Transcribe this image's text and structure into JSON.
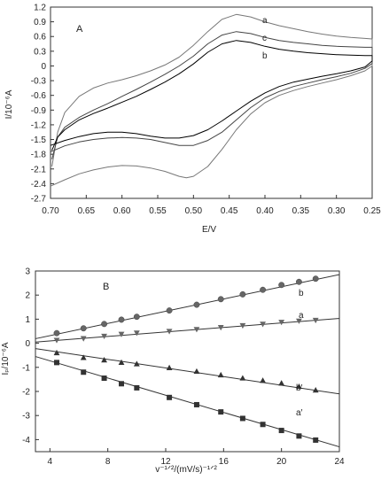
{
  "chart_data": [
    {
      "panel": "A",
      "type": "line",
      "xlabel": "E/V",
      "ylabel": "I/10⁻⁶A",
      "xlim": [
        0.7,
        0.25
      ],
      "ylim": [
        -2.7,
        1.2
      ],
      "x_axis_reversed": true,
      "xticks": [
        0.7,
        0.65,
        0.6,
        0.55,
        0.5,
        0.45,
        0.4,
        0.35,
        0.3,
        0.25
      ],
      "xtick_labels": [
        "0.70",
        "0.65",
        "0.60",
        "0.55",
        "0.50",
        "0.45",
        "0.40",
        "0.35",
        "0.30",
        "0.25"
      ],
      "yticks": [
        1.2,
        0.9,
        0.6,
        0.3,
        0,
        -0.3,
        -0.6,
        -0.9,
        -1.2,
        -1.5,
        -1.8,
        -2.1,
        -2.4,
        -2.7
      ],
      "ytick_labels": [
        "1.2",
        "0.9",
        "0.6",
        "0.3",
        "0",
        "-0.3",
        "-0.6",
        "-0.9",
        "-1.2",
        "-1.5",
        "-1.8",
        "-2.1",
        "-2.4",
        "-2.7"
      ],
      "series": [
        {
          "name": "a",
          "color": "#777777",
          "upper": {
            "x": [
              0.698,
              0.69,
              0.68,
              0.66,
              0.64,
              0.62,
              0.6,
              0.58,
              0.56,
              0.54,
              0.52,
              0.5,
              0.48,
              0.46,
              0.44,
              0.42,
              0.4,
              0.38,
              0.36,
              0.34,
              0.32,
              0.3,
              0.28,
              0.26,
              0.25
            ],
            "y": [
              -2.05,
              -1.35,
              -0.95,
              -0.62,
              -0.45,
              -0.35,
              -0.28,
              -0.2,
              -0.1,
              0.02,
              0.18,
              0.42,
              0.7,
              0.95,
              1.05,
              1.0,
              0.9,
              0.82,
              0.76,
              0.7,
              0.65,
              0.61,
              0.58,
              0.56,
              0.55
            ]
          },
          "lower": {
            "x": [
              0.25,
              0.26,
              0.28,
              0.3,
              0.32,
              0.34,
              0.36,
              0.38,
              0.4,
              0.42,
              0.44,
              0.46,
              0.48,
              0.5,
              0.51,
              0.52,
              0.54,
              0.56,
              0.58,
              0.6,
              0.62,
              0.64,
              0.66,
              0.68,
              0.7
            ],
            "y": [
              0.0,
              -0.1,
              -0.2,
              -0.28,
              -0.35,
              -0.42,
              -0.5,
              -0.6,
              -0.75,
              -0.98,
              -1.3,
              -1.7,
              -2.05,
              -2.25,
              -2.28,
              -2.25,
              -2.15,
              -2.08,
              -2.04,
              -2.03,
              -2.06,
              -2.12,
              -2.2,
              -2.32,
              -2.45
            ]
          }
        },
        {
          "name": "c",
          "color": "#444444",
          "upper": {
            "x": [
              0.698,
              0.69,
              0.68,
              0.66,
              0.64,
              0.62,
              0.6,
              0.58,
              0.56,
              0.54,
              0.52,
              0.5,
              0.48,
              0.46,
              0.44,
              0.42,
              0.4,
              0.38,
              0.36,
              0.34,
              0.32,
              0.3,
              0.28,
              0.26,
              0.25
            ],
            "y": [
              -1.9,
              -1.45,
              -1.25,
              -1.05,
              -0.9,
              -0.77,
              -0.62,
              -0.48,
              -0.33,
              -0.17,
              0.0,
              0.2,
              0.45,
              0.63,
              0.7,
              0.66,
              0.58,
              0.52,
              0.48,
              0.45,
              0.42,
              0.4,
              0.39,
              0.38,
              0.38
            ]
          },
          "lower": {
            "x": [
              0.25,
              0.26,
              0.28,
              0.3,
              0.32,
              0.34,
              0.36,
              0.38,
              0.4,
              0.42,
              0.44,
              0.46,
              0.48,
              0.5,
              0.52,
              0.54,
              0.56,
              0.58,
              0.6,
              0.62,
              0.64,
              0.66,
              0.68,
              0.7
            ],
            "y": [
              0.05,
              -0.05,
              -0.15,
              -0.22,
              -0.28,
              -0.35,
              -0.42,
              -0.52,
              -0.65,
              -0.85,
              -1.1,
              -1.35,
              -1.52,
              -1.62,
              -1.62,
              -1.56,
              -1.5,
              -1.47,
              -1.46,
              -1.47,
              -1.5,
              -1.55,
              -1.63,
              -1.75
            ]
          }
        },
        {
          "name": "b",
          "color": "#000000",
          "upper": {
            "x": [
              0.698,
              0.69,
              0.68,
              0.66,
              0.64,
              0.62,
              0.6,
              0.58,
              0.56,
              0.54,
              0.52,
              0.5,
              0.48,
              0.46,
              0.44,
              0.42,
              0.4,
              0.38,
              0.36,
              0.34,
              0.32,
              0.3,
              0.28,
              0.26,
              0.25
            ],
            "y": [
              -1.72,
              -1.45,
              -1.3,
              -1.1,
              -0.97,
              -0.86,
              -0.74,
              -0.62,
              -0.48,
              -0.33,
              -0.16,
              0.04,
              0.28,
              0.45,
              0.52,
              0.48,
              0.4,
              0.34,
              0.3,
              0.27,
              0.25,
              0.23,
              0.22,
              0.21,
              0.21
            ]
          },
          "lower": {
            "x": [
              0.25,
              0.26,
              0.28,
              0.3,
              0.32,
              0.34,
              0.36,
              0.38,
              0.4,
              0.42,
              0.44,
              0.46,
              0.48,
              0.5,
              0.52,
              0.54,
              0.56,
              0.58,
              0.6,
              0.62,
              0.64,
              0.66,
              0.68,
              0.7
            ],
            "y": [
              0.1,
              -0.02,
              -0.1,
              -0.16,
              -0.21,
              -0.27,
              -0.33,
              -0.42,
              -0.55,
              -0.72,
              -0.92,
              -1.12,
              -1.3,
              -1.42,
              -1.47,
              -1.47,
              -1.43,
              -1.38,
              -1.35,
              -1.35,
              -1.38,
              -1.44,
              -1.52,
              -1.62
            ]
          }
        }
      ]
    },
    {
      "panel": "B",
      "type": "scatter",
      "xlabel": "v⁻¹ᐟ²/(mV/s)⁻¹ᐟ²",
      "ylabel": "Iₚ/10⁻⁶A",
      "xlim": [
        3,
        24
      ],
      "ylim": [
        -4.5,
        3
      ],
      "xticks": [
        4,
        8,
        12,
        16,
        20,
        24
      ],
      "xtick_labels": [
        "4",
        "8",
        "12",
        "16",
        "20",
        "24"
      ],
      "yticks": [
        3,
        2,
        1,
        0,
        -1,
        -2,
        -3,
        -4
      ],
      "ytick_labels": [
        "3",
        "2",
        "1",
        "0",
        "-1",
        "-2",
        "-3",
        "-4"
      ],
      "series": [
        {
          "name": "b",
          "marker": "circle",
          "x": [
            4.47,
            6.32,
            7.75,
            8.94,
            10.0,
            12.25,
            14.14,
            15.81,
            17.32,
            18.71,
            20.0,
            21.21,
            22.36
          ],
          "y": [
            0.42,
            0.62,
            0.8,
            0.98,
            1.1,
            1.36,
            1.6,
            1.83,
            2.03,
            2.22,
            2.42,
            2.55,
            2.68
          ],
          "fit": {
            "x": [
              3,
              24
            ],
            "y": [
              0.19,
              2.85
            ]
          }
        },
        {
          "name": "a",
          "marker": "triangle-down",
          "x": [
            4.47,
            6.32,
            7.75,
            8.94,
            10.0,
            12.25,
            14.14,
            15.81,
            17.32,
            18.71,
            20.0,
            21.21,
            22.36
          ],
          "y": [
            0.13,
            0.2,
            0.3,
            0.38,
            0.43,
            0.5,
            0.58,
            0.66,
            0.74,
            0.8,
            0.88,
            0.93,
            0.96
          ],
          "fit": {
            "x": [
              3,
              24
            ],
            "y": [
              0.05,
              1.03
            ]
          }
        },
        {
          "name": "b′",
          "marker": "triangle-up",
          "x": [
            4.47,
            6.32,
            7.75,
            8.94,
            10.0,
            12.25,
            14.14,
            15.81,
            17.32,
            18.71,
            20.0,
            21.21,
            22.36
          ],
          "y": [
            -0.4,
            -0.6,
            -0.7,
            -0.8,
            -0.86,
            -1.02,
            -1.17,
            -1.32,
            -1.45,
            -1.55,
            -1.66,
            -1.8,
            -1.95
          ],
          "fit": {
            "x": [
              3,
              24
            ],
            "y": [
              -0.22,
              -2.1
            ]
          }
        },
        {
          "name": "a′",
          "marker": "square",
          "x": [
            4.47,
            6.32,
            7.75,
            8.94,
            10.0,
            12.25,
            14.14,
            15.81,
            17.32,
            18.71,
            20.0,
            21.21,
            22.36
          ],
          "y": [
            -0.8,
            -1.2,
            -1.45,
            -1.68,
            -1.85,
            -2.25,
            -2.55,
            -2.85,
            -3.12,
            -3.37,
            -3.62,
            -3.85,
            -4.02
          ],
          "fit": {
            "x": [
              3,
              24
            ],
            "y": [
              -0.55,
              -4.3
            ]
          }
        }
      ]
    }
  ]
}
